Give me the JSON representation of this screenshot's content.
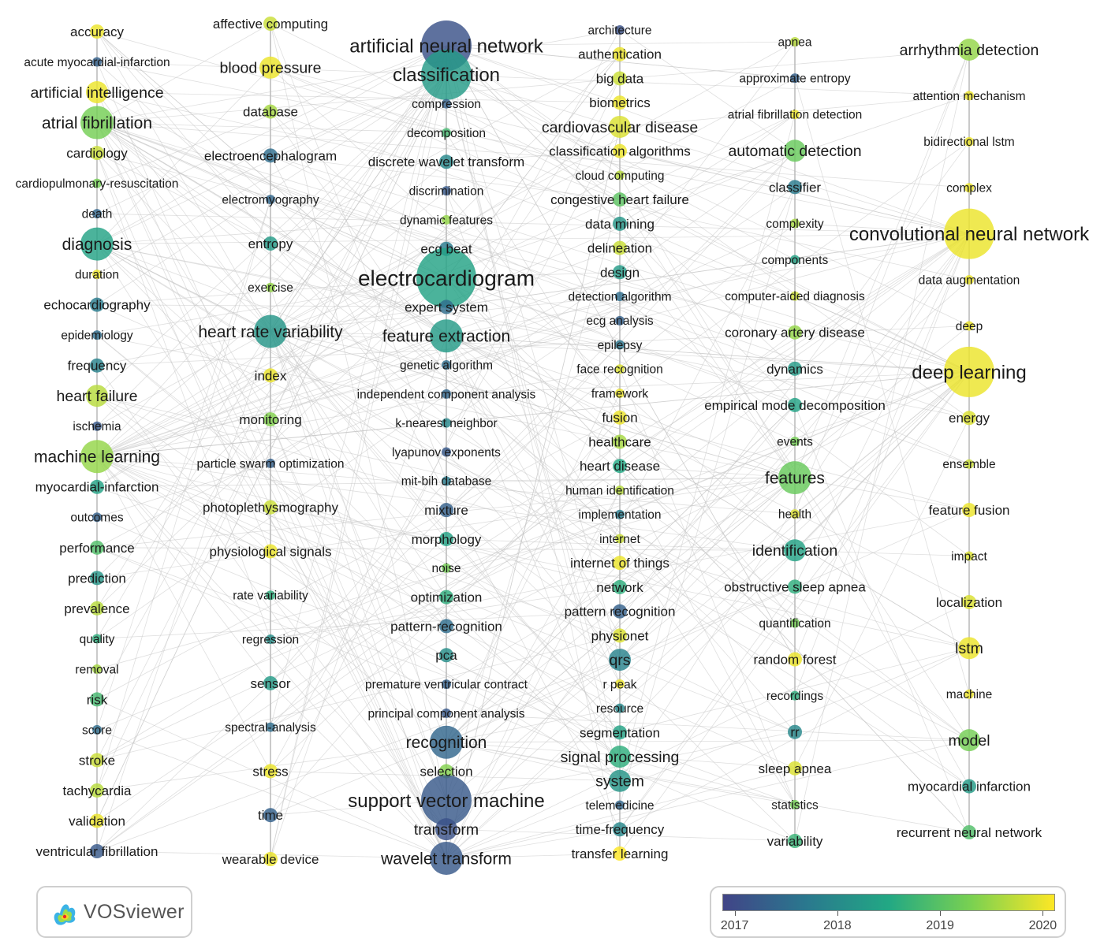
{
  "diagram": {
    "type": "bibliometric keyword co-occurrence overlay network",
    "columns": [
      {
        "label": "column-1",
        "items": [
          {
            "label": "accuracy",
            "size": "small",
            "year": 2019.9
          },
          {
            "label": "acute myocardial-infarction",
            "size": "tiny",
            "year": 2017.4
          },
          {
            "label": "artificial intelligence",
            "size": "medium",
            "year": 2019.9
          },
          {
            "label": "atrial fibrillation",
            "size": "large",
            "year": 2019.2
          },
          {
            "label": "cardiology",
            "size": "small",
            "year": 2019.7
          },
          {
            "label": "cardiopulmonary-resuscitation",
            "size": "tiny",
            "year": 2019.2
          },
          {
            "label": "death",
            "size": "tiny",
            "year": 2017.5
          },
          {
            "label": "diagnosis",
            "size": "large",
            "year": 2018.4
          },
          {
            "label": "duration",
            "size": "tiny",
            "year": 2019.9
          },
          {
            "label": "echocardiography",
            "size": "small",
            "year": 2017.8
          },
          {
            "label": "epidemiology",
            "size": "tiny",
            "year": 2017.6
          },
          {
            "label": "frequency",
            "size": "small",
            "year": 2017.9
          },
          {
            "label": "heart failure",
            "size": "medium",
            "year": 2019.6
          },
          {
            "label": "ischemia",
            "size": "tiny",
            "year": 2017.3
          },
          {
            "label": "machine learning",
            "size": "large",
            "year": 2019.4
          },
          {
            "label": "myocardial-infarction",
            "size": "small",
            "year": 2018.4
          },
          {
            "label": "outcomes",
            "size": "tiny",
            "year": 2017.4
          },
          {
            "label": "performance",
            "size": "small",
            "year": 2018.9
          },
          {
            "label": "prediction",
            "size": "small",
            "year": 2018.2
          },
          {
            "label": "prevalence",
            "size": "small",
            "year": 2019.6
          },
          {
            "label": "quality",
            "size": "tiny",
            "year": 2018.6
          },
          {
            "label": "removal",
            "size": "tiny",
            "year": 2019.5
          },
          {
            "label": "risk",
            "size": "small",
            "year": 2018.8
          },
          {
            "label": "score",
            "size": "tiny",
            "year": 2017.6
          },
          {
            "label": "stroke",
            "size": "small",
            "year": 2019.7
          },
          {
            "label": "tachycardia",
            "size": "small",
            "year": 2019.6
          },
          {
            "label": "validation",
            "size": "small",
            "year": 2019.9
          },
          {
            "label": "ventricular fibrillation",
            "size": "small",
            "year": 2017.3
          }
        ]
      },
      {
        "label": "column-2",
        "items": [
          {
            "label": "affective computing",
            "size": "small",
            "year": 2019.7
          },
          {
            "label": "blood pressure",
            "size": "medium",
            "year": 2019.9
          },
          {
            "label": "database",
            "size": "small",
            "year": 2019.5
          },
          {
            "label": "electroencephalogram",
            "size": "small",
            "year": 2017.6
          },
          {
            "label": "electromyography",
            "size": "tiny",
            "year": 2017.5
          },
          {
            "label": "entropy",
            "size": "small",
            "year": 2018.3
          },
          {
            "label": "exercise",
            "size": "tiny",
            "year": 2019.4
          },
          {
            "label": "heart rate variability",
            "size": "large",
            "year": 2018.2
          },
          {
            "label": "index",
            "size": "small",
            "year": 2019.9
          },
          {
            "label": "monitoring",
            "size": "small",
            "year": 2019.3
          },
          {
            "label": "particle swarm optimization",
            "size": "tiny",
            "year": 2017.4
          },
          {
            "label": "photoplethysmography",
            "size": "small",
            "year": 2019.7
          },
          {
            "label": "physiological signals",
            "size": "small",
            "year": 2019.9
          },
          {
            "label": "rate variability",
            "size": "tiny",
            "year": 2018.6
          },
          {
            "label": "regression",
            "size": "tiny",
            "year": 2018.1
          },
          {
            "label": "sensor",
            "size": "small",
            "year": 2018.3
          },
          {
            "label": "spectral-analysis",
            "size": "tiny",
            "year": 2017.6
          },
          {
            "label": "stress",
            "size": "small",
            "year": 2019.9
          },
          {
            "label": "time",
            "size": "small",
            "year": 2017.4
          },
          {
            "label": "wearable device",
            "size": "small",
            "year": 2019.9
          }
        ]
      },
      {
        "label": "column-3",
        "items": [
          {
            "label": "artificial neural network",
            "size": "xlarge",
            "year": 2017.2
          },
          {
            "label": "classification",
            "size": "xlarge",
            "year": 2018.3
          },
          {
            "label": "compression",
            "size": "tiny",
            "year": 2017.4
          },
          {
            "label": "decomposition",
            "size": "tiny",
            "year": 2018.8
          },
          {
            "label": "discrete wavelet transform",
            "size": "small",
            "year": 2018.0
          },
          {
            "label": "discrimination",
            "size": "tiny",
            "year": 2017.3
          },
          {
            "label": "dynamic features",
            "size": "tiny",
            "year": 2019.4
          },
          {
            "label": "ecg beat",
            "size": "small",
            "year": 2017.8
          },
          {
            "label": "electrocardiogram",
            "size": "huge",
            "year": 2018.4
          },
          {
            "label": "expert system",
            "size": "small",
            "year": 2017.6
          },
          {
            "label": "feature extraction",
            "size": "large",
            "year": 2018.3
          },
          {
            "label": "genetic algorithm",
            "size": "tiny",
            "year": 2017.6
          },
          {
            "label": "independent component analysis",
            "size": "tiny",
            "year": 2017.5
          },
          {
            "label": "k-nearest neighbor",
            "size": "tiny",
            "year": 2018.0
          },
          {
            "label": "lyapunov exponents",
            "size": "tiny",
            "year": 2017.3
          },
          {
            "label": "mit-bih database",
            "size": "tiny",
            "year": 2017.8
          },
          {
            "label": "mixture",
            "size": "small",
            "year": 2017.4
          },
          {
            "label": "morphology",
            "size": "small",
            "year": 2018.4
          },
          {
            "label": "noise",
            "size": "tiny",
            "year": 2019.2
          },
          {
            "label": "optimization",
            "size": "small",
            "year": 2018.6
          },
          {
            "label": "pattern-recognition",
            "size": "small",
            "year": 2017.6
          },
          {
            "label": "pca",
            "size": "small",
            "year": 2018.1
          },
          {
            "label": "premature ventricular contract",
            "size": "tiny",
            "year": 2017.4
          },
          {
            "label": "principal component analysis",
            "size": "tiny",
            "year": 2017.3
          },
          {
            "label": "recognition",
            "size": "large",
            "year": 2017.5
          },
          {
            "label": "selection",
            "size": "small",
            "year": 2019.3
          },
          {
            "label": "support vector machine",
            "size": "xlarge",
            "year": 2017.3
          },
          {
            "label": "transform",
            "size": "medium",
            "year": 2017.2
          },
          {
            "label": "wavelet transform",
            "size": "large",
            "year": 2017.3
          }
        ]
      },
      {
        "label": "column-4",
        "items": [
          {
            "label": "architecture",
            "size": "tiny",
            "year": 2017.2
          },
          {
            "label": "authentication",
            "size": "small",
            "year": 2019.9
          },
          {
            "label": "big data",
            "size": "small",
            "year": 2019.7
          },
          {
            "label": "biometrics",
            "size": "small",
            "year": 2019.9
          },
          {
            "label": "cardiovascular disease",
            "size": "medium",
            "year": 2019.8
          },
          {
            "label": "classification algorithms",
            "size": "small",
            "year": 2019.9
          },
          {
            "label": "cloud computing",
            "size": "tiny",
            "year": 2019.6
          },
          {
            "label": "congestive heart failure",
            "size": "small",
            "year": 2019.0
          },
          {
            "label": "data mining",
            "size": "small",
            "year": 2018.2
          },
          {
            "label": "delineation",
            "size": "small",
            "year": 2019.7
          },
          {
            "label": "design",
            "size": "small",
            "year": 2018.3
          },
          {
            "label": "detection algorithm",
            "size": "tiny",
            "year": 2017.6
          },
          {
            "label": "ecg analysis",
            "size": "tiny",
            "year": 2017.4
          },
          {
            "label": "epilepsy",
            "size": "tiny",
            "year": 2017.7
          },
          {
            "label": "face recognition",
            "size": "tiny",
            "year": 2019.8
          },
          {
            "label": "framework",
            "size": "tiny",
            "year": 2019.9
          },
          {
            "label": "fusion",
            "size": "small",
            "year": 2019.9
          },
          {
            "label": "healthcare",
            "size": "small",
            "year": 2019.5
          },
          {
            "label": "heart disease",
            "size": "small",
            "year": 2018.5
          },
          {
            "label": "human identification",
            "size": "tiny",
            "year": 2019.6
          },
          {
            "label": "implementation",
            "size": "tiny",
            "year": 2017.8
          },
          {
            "label": "internet",
            "size": "tiny",
            "year": 2019.7
          },
          {
            "label": "internet of things",
            "size": "small",
            "year": 2019.9
          },
          {
            "label": "network",
            "size": "small",
            "year": 2018.6
          },
          {
            "label": "pattern recognition",
            "size": "small",
            "year": 2017.4
          },
          {
            "label": "physionet",
            "size": "small",
            "year": 2019.8
          },
          {
            "label": "qrs",
            "size": "medium",
            "year": 2017.9
          },
          {
            "label": "r peak",
            "size": "tiny",
            "year": 2019.9
          },
          {
            "label": "resource",
            "size": "tiny",
            "year": 2018.0
          },
          {
            "label": "segmentation",
            "size": "small",
            "year": 2018.4
          },
          {
            "label": "signal processing",
            "size": "medium",
            "year": 2018.6
          },
          {
            "label": "system",
            "size": "medium",
            "year": 2018.2
          },
          {
            "label": "telemedicine",
            "size": "tiny",
            "year": 2017.5
          },
          {
            "label": "time-frequency",
            "size": "small",
            "year": 2018.0
          },
          {
            "label": "transfer learning",
            "size": "small",
            "year": 2020.0
          }
        ]
      },
      {
        "label": "column-5",
        "items": [
          {
            "label": "apnea",
            "size": "tiny",
            "year": 2019.6
          },
          {
            "label": "approximate entropy",
            "size": "tiny",
            "year": 2017.4
          },
          {
            "label": "atrial fibrillation detection",
            "size": "tiny",
            "year": 2019.9
          },
          {
            "label": "automatic detection",
            "size": "medium",
            "year": 2019.1
          },
          {
            "label": "classifier",
            "size": "small",
            "year": 2017.8
          },
          {
            "label": "complexity",
            "size": "tiny",
            "year": 2019.5
          },
          {
            "label": "components",
            "size": "tiny",
            "year": 2018.4
          },
          {
            "label": "computer-aided diagnosis",
            "size": "tiny",
            "year": 2019.7
          },
          {
            "label": "coronary artery disease",
            "size": "small",
            "year": 2019.4
          },
          {
            "label": "dynamics",
            "size": "small",
            "year": 2018.3
          },
          {
            "label": "empirical mode decomposition",
            "size": "small",
            "year": 2018.4
          },
          {
            "label": "events",
            "size": "tiny",
            "year": 2019.2
          },
          {
            "label": "features",
            "size": "large",
            "year": 2019.1
          },
          {
            "label": "health",
            "size": "tiny",
            "year": 2019.8
          },
          {
            "label": "identification",
            "size": "medium",
            "year": 2018.4
          },
          {
            "label": "obstructive sleep apnea",
            "size": "small",
            "year": 2018.6
          },
          {
            "label": "quantification",
            "size": "tiny",
            "year": 2019.2
          },
          {
            "label": "random forest",
            "size": "small",
            "year": 2019.9
          },
          {
            "label": "recordings",
            "size": "tiny",
            "year": 2018.6
          },
          {
            "label": "rr",
            "size": "small",
            "year": 2018.0
          },
          {
            "label": "sleep apnea",
            "size": "small",
            "year": 2019.8
          },
          {
            "label": "statistics",
            "size": "tiny",
            "year": 2019.2
          },
          {
            "label": "variability",
            "size": "small",
            "year": 2018.7
          }
        ]
      },
      {
        "label": "column-6",
        "items": [
          {
            "label": "arrhythmia detection",
            "size": "medium",
            "year": 2019.4
          },
          {
            "label": "attention mechanism",
            "size": "tiny",
            "year": 2019.9
          },
          {
            "label": "bidirectional lstm",
            "size": "tiny",
            "year": 2019.9
          },
          {
            "label": "complex",
            "size": "tiny",
            "year": 2019.9
          },
          {
            "label": "convolutional neural network",
            "size": "xlarge",
            "year": 2019.9
          },
          {
            "label": "data augmentation",
            "size": "tiny",
            "year": 2019.9
          },
          {
            "label": "deep",
            "size": "tiny",
            "year": 2019.9
          },
          {
            "label": "deep learning",
            "size": "xlarge",
            "year": 2019.9
          },
          {
            "label": "energy",
            "size": "small",
            "year": 2019.8
          },
          {
            "label": "ensemble",
            "size": "tiny",
            "year": 2019.7
          },
          {
            "label": "feature fusion",
            "size": "small",
            "year": 2019.9
          },
          {
            "label": "impact",
            "size": "tiny",
            "year": 2019.8
          },
          {
            "label": "localization",
            "size": "small",
            "year": 2019.8
          },
          {
            "label": "lstm",
            "size": "medium",
            "year": 2019.9
          },
          {
            "label": "machine",
            "size": "tiny",
            "year": 2019.9
          },
          {
            "label": "model",
            "size": "medium",
            "year": 2019.2
          },
          {
            "label": "myocardial infarction",
            "size": "small",
            "year": 2018.3
          },
          {
            "label": "recurrent neural network",
            "size": "small",
            "year": 2018.9
          }
        ]
      }
    ]
  },
  "logo": {
    "text": "VOSviewer"
  },
  "legend": {
    "year_min": 2016.88,
    "year_max": 2020.12,
    "ticks": [
      "2017",
      "2018",
      "2019",
      "2020"
    ],
    "colors": [
      "#414487",
      "#2a788e",
      "#22a884",
      "#7ad151",
      "#fde725"
    ]
  }
}
